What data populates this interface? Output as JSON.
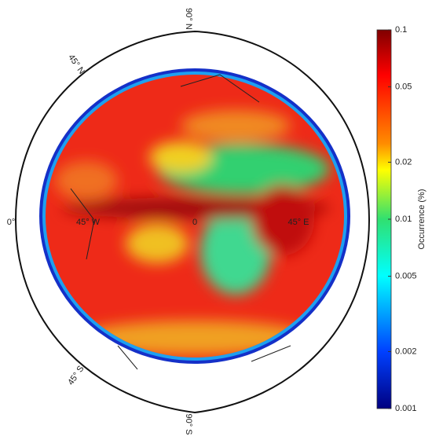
{
  "map": {
    "labels": [
      "90° N",
      "45° N",
      "0°",
      "45° W",
      "0",
      "45° E",
      "45° S",
      "90° S"
    ]
  },
  "colorbar": {
    "label": "Occurrence (%)",
    "scale": "log",
    "lim": [
      0.001,
      0.1
    ],
    "ticks": [
      0.1,
      0.05,
      0.02,
      0.01,
      0.005,
      0.002,
      0.001
    ]
  }
}
